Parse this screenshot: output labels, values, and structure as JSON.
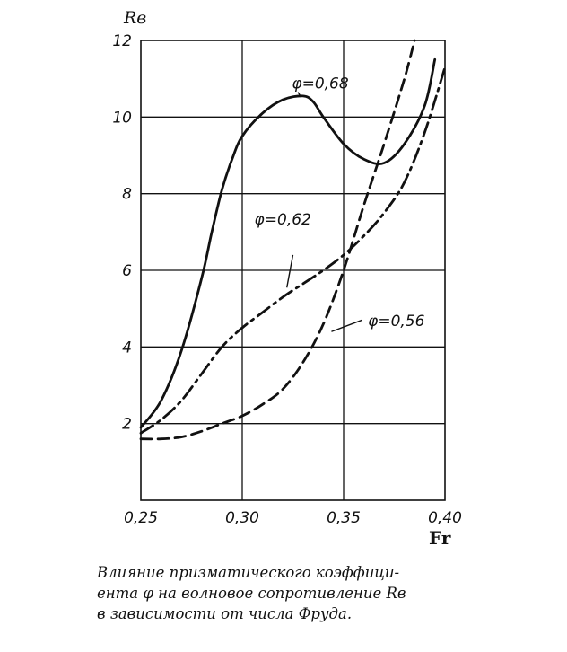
{
  "chart_data": {
    "type": "line",
    "xlabel": "Fr",
    "ylabel": "Rв",
    "xlim": [
      0.25,
      0.4
    ],
    "ylim": [
      0,
      12
    ],
    "x_ticks": [
      "0,25",
      "0,30",
      "0,35",
      "0,40"
    ],
    "y_ticks": [
      "2",
      "4",
      "6",
      "8",
      "10",
      "12"
    ],
    "grid": true,
    "series": [
      {
        "name": "φ=0,68",
        "style": "solid",
        "x": [
          0.25,
          0.26,
          0.27,
          0.28,
          0.285,
          0.29,
          0.295,
          0.3,
          0.31,
          0.32,
          0.33,
          0.335,
          0.34,
          0.35,
          0.36,
          0.37,
          0.38,
          0.39,
          0.395
        ],
        "y": [
          1.9,
          2.6,
          3.9,
          5.8,
          7.0,
          8.1,
          8.9,
          9.5,
          10.1,
          10.45,
          10.55,
          10.4,
          10.0,
          9.3,
          8.9,
          8.8,
          9.3,
          10.3,
          11.5
        ]
      },
      {
        "name": "φ=0,62",
        "style": "dashdot",
        "x": [
          0.25,
          0.26,
          0.27,
          0.28,
          0.29,
          0.3,
          0.31,
          0.32,
          0.33,
          0.34,
          0.35,
          0.36,
          0.37,
          0.38,
          0.39,
          0.4
        ],
        "y": [
          1.75,
          2.1,
          2.6,
          3.3,
          4.0,
          4.5,
          4.9,
          5.3,
          5.65,
          6.0,
          6.4,
          6.9,
          7.5,
          8.3,
          9.6,
          11.3
        ]
      },
      {
        "name": "φ=0,56",
        "style": "dashed",
        "x": [
          0.25,
          0.26,
          0.27,
          0.28,
          0.29,
          0.3,
          0.31,
          0.32,
          0.33,
          0.34,
          0.35,
          0.36,
          0.37,
          0.38,
          0.385
        ],
        "y": [
          1.6,
          1.6,
          1.65,
          1.8,
          2.0,
          2.2,
          2.5,
          2.9,
          3.6,
          4.6,
          6.0,
          7.7,
          9.3,
          11.0,
          12.0
        ]
      }
    ]
  },
  "caption": {
    "line1": "Влияние призматического коэффици-",
    "line2": "ента φ на волновое сопротивление Rв",
    "line3": "в зависимости от числа Фруда."
  }
}
